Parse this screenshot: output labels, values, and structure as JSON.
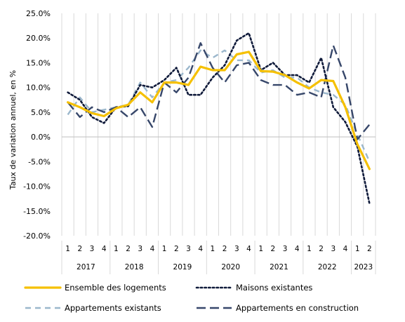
{
  "chart_data": {
    "type": "line",
    "ylabel": "Taux de variation annuel, en %",
    "ylim": [
      -20,
      25
    ],
    "yticks": [
      {
        "v": 25,
        "label": "25.0%"
      },
      {
        "v": 20,
        "label": "20.0%"
      },
      {
        "v": 15,
        "label": "15.0%"
      },
      {
        "v": 10,
        "label": "10.0%"
      },
      {
        "v": 5,
        "label": "5.0%"
      },
      {
        "v": 0,
        "label": "0.0%"
      },
      {
        "v": -5,
        "label": "-5.0%"
      },
      {
        "v": -10,
        "label": "-10.0%"
      },
      {
        "v": -15,
        "label": "-15.0%"
      },
      {
        "v": -20,
        "label": "-20.0%"
      }
    ],
    "quarter_labels": [
      "1",
      "2",
      "3",
      "4",
      "1",
      "2",
      "3",
      "4",
      "1",
      "2",
      "3",
      "4",
      "1",
      "2",
      "3",
      "4",
      "1",
      "2",
      "3",
      "4",
      "1",
      "2",
      "3",
      "4",
      "1",
      "2"
    ],
    "year_labels": [
      "2017",
      "2018",
      "2019",
      "2020",
      "2021",
      "2022",
      "2023"
    ],
    "grid": "vertical",
    "legend_position": "bottom",
    "series": [
      {
        "name": "Ensemble des logements",
        "color": "#f5c000",
        "style": "solid",
        "values": [
          7.0,
          6.0,
          4.8,
          4.2,
          5.8,
          6.5,
          9.0,
          7.0,
          11.0,
          11.0,
          10.5,
          14.2,
          13.5,
          13.5,
          16.7,
          17.2,
          13.3,
          13.2,
          12.5,
          11.0,
          9.8,
          11.5,
          11.3,
          6.0,
          -1.5,
          -6.5
        ]
      },
      {
        "name": "Maisons existantes",
        "color": "#0f1a3a",
        "style": "dotted",
        "values": [
          9.0,
          7.5,
          4.0,
          2.8,
          6.0,
          6.2,
          10.5,
          10.0,
          11.5,
          14.0,
          8.5,
          8.5,
          12.0,
          14.5,
          19.5,
          21.0,
          13.5,
          15.0,
          12.5,
          12.5,
          11.0,
          16.0,
          6.0,
          3.0,
          -2.0,
          -13.5
        ]
      },
      {
        "name": "Appartements existants",
        "color": "#9bb7cc",
        "style": "dashed",
        "values": [
          4.5,
          8.0,
          5.0,
          5.5,
          6.0,
          6.5,
          11.0,
          8.0,
          11.0,
          11.5,
          14.0,
          17.5,
          16.0,
          17.5,
          15.5,
          15.5,
          13.0,
          13.5,
          12.0,
          12.0,
          10.0,
          9.0,
          8.5,
          6.5,
          0.5,
          -5.0
        ]
      },
      {
        "name": "Appartements en construction",
        "color": "#37476a",
        "style": "longdash",
        "values": [
          7.0,
          4.0,
          6.0,
          5.0,
          6.0,
          4.0,
          6.0,
          2.0,
          11.0,
          9.0,
          12.0,
          19.0,
          14.0,
          11.0,
          14.5,
          15.0,
          11.5,
          10.5,
          10.5,
          8.5,
          9.0,
          8.0,
          18.5,
          12.0,
          -0.5,
          2.5
        ]
      }
    ]
  }
}
